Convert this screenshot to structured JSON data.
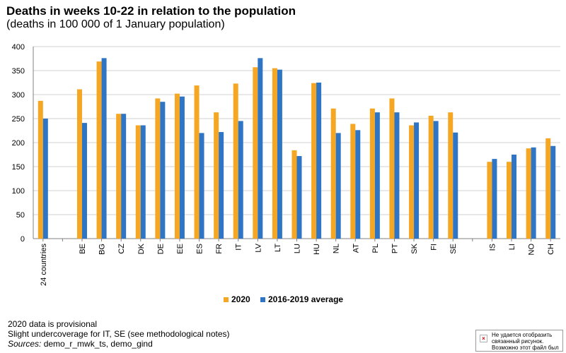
{
  "title": "Deaths in weeks 10-22 in relation to the population",
  "subtitle": "(deaths in 100 000 of 1 January population)",
  "notes": {
    "line1": "2020 data is provisional",
    "line2": "Slight undercoverage  for IT, SE (see methodological notes)",
    "sources_label": "Sources:",
    "sources_value": " demo_r_mwk_ts, demo_gind"
  },
  "broken_image": {
    "icon": "broken-image-icon",
    "text": "Не удается отобразить связанный рисунок. Возможно этот файл был перемещен"
  },
  "chart_data": {
    "type": "bar",
    "categories": [
      "24 countries",
      "",
      "BE",
      "BG",
      "CZ",
      "DK",
      "DE",
      "EE",
      "ES",
      "FR",
      "IT",
      "LV",
      "LT",
      "LU",
      "HU",
      "NL",
      "AT",
      "PL",
      "PT",
      "SK",
      "FI",
      "SE",
      "",
      "IS",
      "LI",
      "NO",
      "CH"
    ],
    "series": [
      {
        "name": "2020",
        "color": "#f5a623",
        "values": [
          287,
          null,
          311,
          369,
          260,
          236,
          292,
          302,
          319,
          263,
          323,
          357,
          355,
          184,
          324,
          271,
          239,
          271,
          292,
          236,
          256,
          263,
          null,
          160,
          160,
          188,
          209
        ]
      },
      {
        "name": "2016-2019 average",
        "color": "#2e75c6",
        "values": [
          250,
          null,
          241,
          376,
          260,
          236,
          285,
          296,
          220,
          222,
          245,
          376,
          352,
          172,
          325,
          220,
          226,
          263,
          263,
          242,
          245,
          221,
          null,
          166,
          175,
          190,
          193
        ]
      }
    ],
    "ylim": [
      0,
      400
    ],
    "yticks": [
      0,
      50,
      100,
      150,
      200,
      250,
      300,
      350,
      400
    ],
    "grid": true,
    "legend_position": "bottom"
  }
}
